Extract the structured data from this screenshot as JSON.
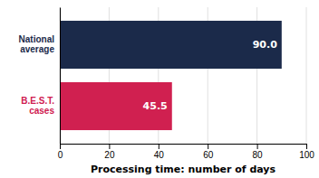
{
  "chart_data": {
    "type": "bar",
    "orientation": "horizontal",
    "categories": [
      "National\naverage",
      "B.E.S.T.\ncases"
    ],
    "values": [
      90.0,
      45.5
    ],
    "value_labels": [
      "90.0",
      "45.5"
    ],
    "colors": [
      "#1b2a4a",
      "#d02050"
    ],
    "data_labels": true,
    "xlabel": "Processing time: number of days",
    "xlim": [
      0,
      100
    ],
    "xticks": [
      0,
      20,
      40,
      60,
      80,
      100
    ],
    "grid": true
  }
}
